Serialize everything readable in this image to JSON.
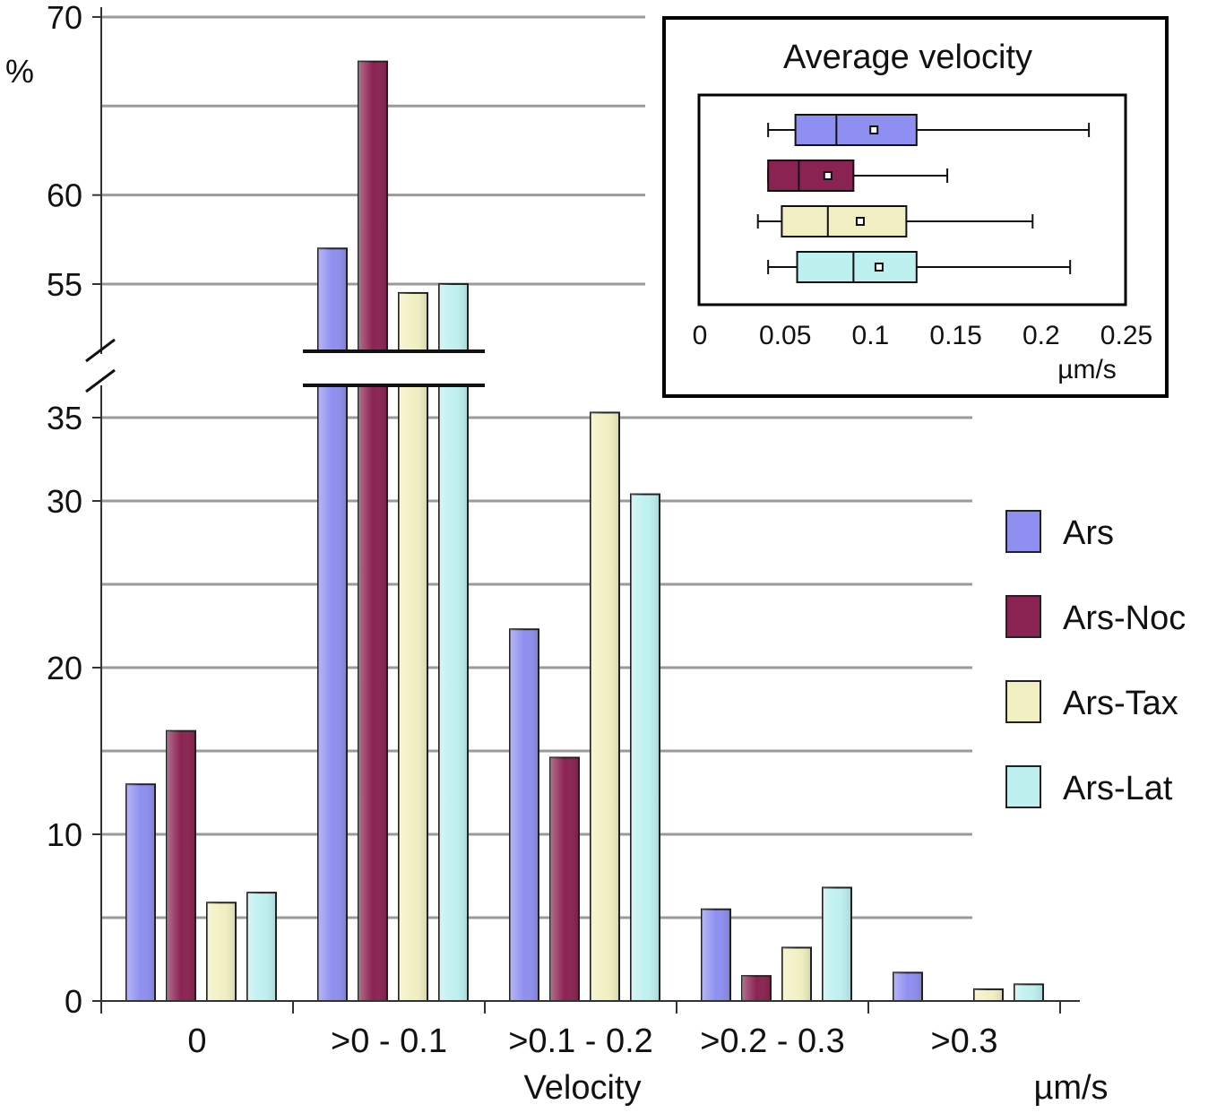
{
  "colors": {
    "Ars": "#8e8ff0",
    "Ars-Noc": "#8b2352",
    "Ars-Tax": "#f2f0c2",
    "Ars-Lat": "#bff0f0",
    "grid": "#9a9a9a"
  },
  "chart_data": [
    {
      "type": "bar",
      "title": "",
      "xlabel": "Velocity",
      "x_unit": "µm/s",
      "ylabel": "%",
      "categories": [
        "0",
        ">0 - 0.1",
        ">0.1 - 0.2",
        ">0.2 - 0.3",
        ">0.3"
      ],
      "series": [
        {
          "name": "Ars",
          "values": [
            13,
            57,
            22.3,
            5.5,
            1.7
          ]
        },
        {
          "name": "Ars-Noc",
          "values": [
            16.2,
            67.5,
            14.6,
            1.5,
            0
          ]
        },
        {
          "name": "Ars-Tax",
          "values": [
            5.9,
            54.5,
            35.3,
            3.2,
            0.7
          ]
        },
        {
          "name": "Ars-Lat",
          "values": [
            6.5,
            55,
            30.4,
            6.8,
            1
          ]
        }
      ],
      "y_axis_break": {
        "lower_range": [
          0,
          36
        ],
        "upper_range": [
          53.5,
          70
        ]
      },
      "yticks_lower": [
        0,
        10,
        20,
        30,
        35
      ],
      "yticks_upper": [
        55,
        60,
        70
      ],
      "grid": true,
      "legend_position": "right"
    },
    {
      "type": "box",
      "title": "Average velocity",
      "xlabel": "µm/s",
      "xlim": [
        0,
        0.25
      ],
      "xticks": [
        0,
        0.05,
        0.1,
        0.15,
        0.2,
        0.25
      ],
      "xtick_labels": [
        "0",
        "0.05",
        "0.1",
        "0.15",
        "0.2",
        "0.25"
      ],
      "series": [
        {
          "name": "Ars",
          "min": 0.04,
          "q1": 0.056,
          "median": 0.08,
          "mean": 0.102,
          "q3": 0.127,
          "max": 0.228
        },
        {
          "name": "Ars-Noc",
          "min": 0.04,
          "q1": 0.04,
          "median": 0.058,
          "mean": 0.075,
          "q3": 0.09,
          "max": 0.145
        },
        {
          "name": "Ars-Tax",
          "min": 0.034,
          "q1": 0.048,
          "median": 0.075,
          "mean": 0.094,
          "q3": 0.121,
          "max": 0.195
        },
        {
          "name": "Ars-Lat",
          "min": 0.04,
          "q1": 0.057,
          "median": 0.09,
          "mean": 0.105,
          "q3": 0.127,
          "max": 0.217
        }
      ],
      "grid": false
    }
  ]
}
